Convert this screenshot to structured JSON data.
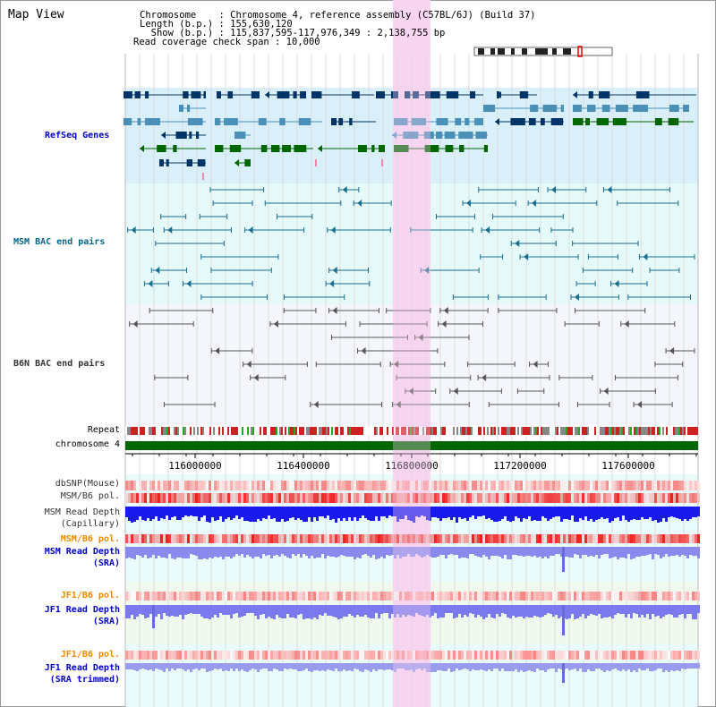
{
  "title": "Map View",
  "info": {
    "chromosome_line": "Chromosome    : Chromosome 4, reference assembly (C57BL/6J) (Build 37)",
    "length_line": "Length (b.p.) : 155,630,120",
    "show_line": "  Show (b.p.) : 115,837,595-117,976,349 : 2,138,755 bp",
    "coverage_line": "Read coverage check span : 10,000"
  },
  "tracks": {
    "refseq": "RefSeq Genes",
    "msm_bac": "MSM BAC end pairs",
    "b6n_bac": "B6N BAC end pairs",
    "repeat": "Repeat",
    "chromosome": "chromosome 4",
    "dbsnp": "dbSNP(Mouse)",
    "msm_b6_pol_1": "MSM/B6 pol.",
    "msm_depth_cap_1": "MSM Read Depth",
    "msm_depth_cap_2": "(Capillary)",
    "msm_b6_pol_2": "MSM/B6 pol.",
    "msm_depth_sra_1": "MSM Read Depth",
    "msm_depth_sra_2": "(SRA)",
    "jf1_b6_pol_1": "JF1/B6 pol.",
    "jf1_depth_sra_1": "JF1 Read Depth",
    "jf1_depth_sra_2": "(SRA)",
    "jf1_b6_pol_2": "JF1/B6 pol.",
    "jf1_depth_trim_1": "JF1 Read Depth",
    "jf1_depth_trim_2": "(SRA trimmed)"
  },
  "axis_ticks": [
    "116000000",
    "116400000",
    "116800000",
    "117200000",
    "117600000"
  ],
  "colors": {
    "refseq_label": "#0000cc",
    "msm_bac_label": "#006688",
    "b6n_bac_label": "#333333",
    "orange_label": "#ee8800",
    "blue_label": "#0000cc",
    "gene_dark": "#003366",
    "gene_mid": "#4a8fb5",
    "gene_green": "#006600",
    "highlight": "#f7d4f0",
    "chromosome_bar": "#006600"
  }
}
